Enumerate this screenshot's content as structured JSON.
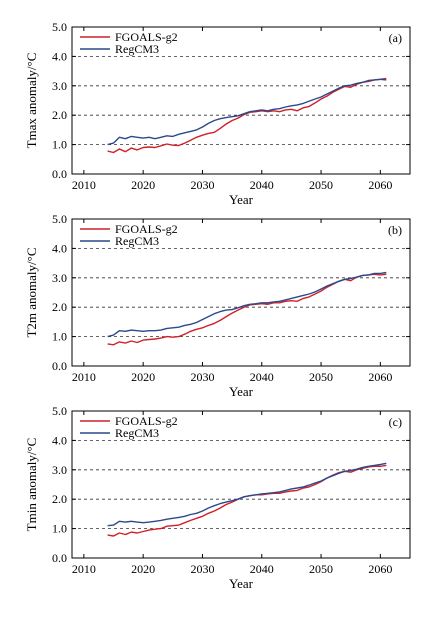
{
  "chart_data": [
    {
      "type": "line",
      "panel_label": "(a)",
      "xlabel": "Year",
      "ylabel": "Tmax anomaly/°C",
      "xlim": [
        2008,
        2065
      ],
      "ylim": [
        0.0,
        5.0
      ],
      "xticks": [
        2010,
        2020,
        2030,
        2040,
        2050,
        2060
      ],
      "yticks": [
        0.0,
        1.0,
        2.0,
        3.0,
        4.0,
        5.0
      ],
      "ytick_labels": [
        "0.0",
        "1.0",
        "2.0",
        "3.0",
        "4.0",
        "5.0"
      ],
      "grid": "dashed horizontal at 1.0, 2.0, 3.0, 4.0",
      "legend_position": "top-left",
      "x": [
        2014,
        2015,
        2016,
        2017,
        2018,
        2019,
        2020,
        2021,
        2022,
        2023,
        2024,
        2025,
        2026,
        2027,
        2028,
        2029,
        2030,
        2031,
        2032,
        2033,
        2034,
        2035,
        2036,
        2037,
        2038,
        2039,
        2040,
        2041,
        2042,
        2043,
        2044,
        2045,
        2046,
        2047,
        2048,
        2049,
        2050,
        2051,
        2052,
        2053,
        2054,
        2055,
        2056,
        2057,
        2058,
        2059,
        2060,
        2061
      ],
      "series": [
        {
          "name": "FGOALS-g2",
          "color": "#d0202a",
          "values": [
            0.78,
            0.73,
            0.85,
            0.76,
            0.88,
            0.82,
            0.9,
            0.92,
            0.9,
            0.96,
            1.02,
            0.98,
            0.97,
            1.05,
            1.15,
            1.25,
            1.32,
            1.38,
            1.42,
            1.55,
            1.7,
            1.82,
            1.9,
            2.02,
            2.1,
            2.12,
            2.15,
            2.12,
            2.15,
            2.12,
            2.18,
            2.2,
            2.15,
            2.25,
            2.3,
            2.42,
            2.55,
            2.65,
            2.78,
            2.88,
            2.98,
            2.95,
            3.05,
            3.12,
            3.15,
            3.2,
            3.22,
            3.25
          ]
        },
        {
          "name": "RegCM3",
          "color": "#2a4a8c",
          "values": [
            1.0,
            1.05,
            1.25,
            1.2,
            1.28,
            1.25,
            1.22,
            1.25,
            1.2,
            1.25,
            1.3,
            1.28,
            1.35,
            1.4,
            1.45,
            1.5,
            1.6,
            1.72,
            1.82,
            1.88,
            1.92,
            1.95,
            1.98,
            2.05,
            2.12,
            2.15,
            2.18,
            2.15,
            2.2,
            2.22,
            2.28,
            2.32,
            2.35,
            2.4,
            2.48,
            2.55,
            2.62,
            2.72,
            2.82,
            2.92,
            3.0,
            3.02,
            3.08,
            3.12,
            3.18,
            3.2,
            3.22,
            3.2
          ]
        }
      ]
    },
    {
      "type": "line",
      "panel_label": "(b)",
      "xlabel": "Year",
      "ylabel": "T2m anomaly/°C",
      "xlim": [
        2008,
        2065
      ],
      "ylim": [
        0.0,
        5.0
      ],
      "xticks": [
        2010,
        2020,
        2030,
        2040,
        2050,
        2060
      ],
      "yticks": [
        0.0,
        1.0,
        2.0,
        3.0,
        4.0,
        5.0
      ],
      "ytick_labels": [
        "0.0",
        "1.0",
        "2.0",
        "3.0",
        "4.0",
        "5.0"
      ],
      "grid": "dashed horizontal at 1.0, 2.0, 3.0, 4.0",
      "legend_position": "top-left",
      "x": [
        2014,
        2015,
        2016,
        2017,
        2018,
        2019,
        2020,
        2021,
        2022,
        2023,
        2024,
        2025,
        2026,
        2027,
        2028,
        2029,
        2030,
        2031,
        2032,
        2033,
        2034,
        2035,
        2036,
        2037,
        2038,
        2039,
        2040,
        2041,
        2042,
        2043,
        2044,
        2045,
        2046,
        2047,
        2048,
        2049,
        2050,
        2051,
        2052,
        2053,
        2054,
        2055,
        2056,
        2057,
        2058,
        2059,
        2060,
        2061
      ],
      "series": [
        {
          "name": "FGOALS-g2",
          "color": "#d0202a",
          "values": [
            0.75,
            0.72,
            0.82,
            0.78,
            0.85,
            0.8,
            0.88,
            0.9,
            0.92,
            0.95,
            1.0,
            0.98,
            1.0,
            1.08,
            1.18,
            1.25,
            1.3,
            1.38,
            1.45,
            1.55,
            1.68,
            1.8,
            1.9,
            2.0,
            2.08,
            2.1,
            2.12,
            2.1,
            2.15,
            2.15,
            2.2,
            2.22,
            2.2,
            2.3,
            2.35,
            2.45,
            2.55,
            2.68,
            2.78,
            2.88,
            2.95,
            2.9,
            3.02,
            3.08,
            3.1,
            3.12,
            3.1,
            3.12
          ]
        },
        {
          "name": "RegCM3",
          "color": "#2a4a8c",
          "values": [
            1.0,
            1.05,
            1.2,
            1.18,
            1.22,
            1.2,
            1.18,
            1.2,
            1.2,
            1.22,
            1.28,
            1.3,
            1.32,
            1.38,
            1.42,
            1.48,
            1.58,
            1.68,
            1.78,
            1.85,
            1.9,
            1.92,
            1.98,
            2.05,
            2.1,
            2.12,
            2.15,
            2.15,
            2.18,
            2.2,
            2.25,
            2.3,
            2.35,
            2.4,
            2.45,
            2.52,
            2.62,
            2.72,
            2.8,
            2.88,
            2.95,
            2.98,
            3.02,
            3.08,
            3.1,
            3.15,
            3.15,
            3.18
          ]
        }
      ]
    },
    {
      "type": "line",
      "panel_label": "(c)",
      "xlabel": "Year",
      "ylabel": "Tmin anomaly/°C",
      "xlim": [
        2008,
        2065
      ],
      "ylim": [
        0.0,
        5.0
      ],
      "xticks": [
        2010,
        2020,
        2030,
        2040,
        2050,
        2060
      ],
      "yticks": [
        0.0,
        1.0,
        2.0,
        3.0,
        4.0,
        5.0
      ],
      "ytick_labels": [
        "0.0",
        "1.0",
        "2.0",
        "3.0",
        "4.0",
        "5.0"
      ],
      "grid": "dashed horizontal at 1.0, 2.0, 3.0, 4.0",
      "legend_position": "top-left",
      "x": [
        2014,
        2015,
        2016,
        2017,
        2018,
        2019,
        2020,
        2021,
        2022,
        2023,
        2024,
        2025,
        2026,
        2027,
        2028,
        2029,
        2030,
        2031,
        2032,
        2033,
        2034,
        2035,
        2036,
        2037,
        2038,
        2039,
        2040,
        2041,
        2042,
        2043,
        2044,
        2045,
        2046,
        2047,
        2048,
        2049,
        2050,
        2051,
        2052,
        2053,
        2054,
        2055,
        2056,
        2057,
        2058,
        2059,
        2060,
        2061
      ],
      "series": [
        {
          "name": "FGOALS-g2",
          "color": "#d0202a",
          "values": [
            0.78,
            0.75,
            0.85,
            0.8,
            0.88,
            0.85,
            0.9,
            0.95,
            0.98,
            1.0,
            1.08,
            1.1,
            1.12,
            1.2,
            1.28,
            1.35,
            1.42,
            1.52,
            1.6,
            1.7,
            1.82,
            1.9,
            2.0,
            2.08,
            2.12,
            2.15,
            2.15,
            2.18,
            2.2,
            2.2,
            2.25,
            2.28,
            2.3,
            2.38,
            2.42,
            2.5,
            2.6,
            2.72,
            2.82,
            2.9,
            2.95,
            2.92,
            3.0,
            3.05,
            3.1,
            3.12,
            3.12,
            3.15
          ]
        },
        {
          "name": "RegCM3",
          "color": "#2a4a8c",
          "values": [
            1.1,
            1.12,
            1.25,
            1.22,
            1.25,
            1.22,
            1.2,
            1.22,
            1.25,
            1.28,
            1.32,
            1.35,
            1.38,
            1.42,
            1.48,
            1.52,
            1.6,
            1.7,
            1.78,
            1.85,
            1.9,
            1.95,
            2.0,
            2.08,
            2.12,
            2.15,
            2.18,
            2.2,
            2.22,
            2.25,
            2.3,
            2.35,
            2.38,
            2.42,
            2.48,
            2.55,
            2.62,
            2.72,
            2.8,
            2.88,
            2.95,
            2.98,
            3.02,
            3.08,
            3.12,
            3.15,
            3.18,
            3.22
          ]
        }
      ]
    }
  ]
}
